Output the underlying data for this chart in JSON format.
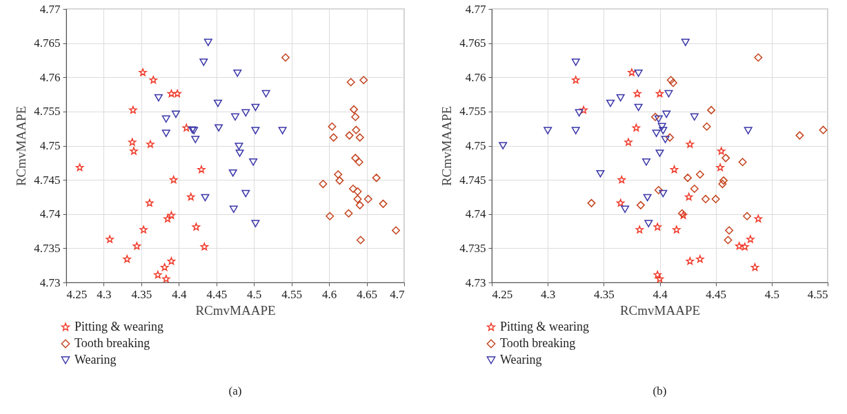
{
  "chart_data": [
    {
      "type": "scatter",
      "xlabel": "RCmvMAAPE",
      "ylabel": "RCmvMAAPE",
      "annotations": [
        "(a)"
      ],
      "xlim": [
        4.25,
        4.7
      ],
      "xticks": [
        4.25,
        4.3,
        4.35,
        4.4,
        4.45,
        4.5,
        4.55,
        4.6,
        4.65,
        4.7
      ],
      "ylim": [
        4.73,
        4.77
      ],
      "yticks": [
        4.73,
        4.735,
        4.74,
        4.745,
        4.75,
        4.755,
        4.76,
        4.765,
        4.77
      ],
      "grid": true,
      "legend": "bottom left",
      "series": [
        {
          "name": "Pitting & wearing",
          "color": "#f03a2a",
          "marker": "star",
          "x": [
            4.268,
            4.308,
            4.331,
            4.338,
            4.339,
            4.34,
            4.344,
            4.352,
            4.353,
            4.361,
            4.362,
            4.366,
            4.372,
            4.381,
            4.383,
            4.385,
            4.39,
            4.39,
            4.39,
            4.393,
            4.398,
            4.41,
            4.416,
            4.423,
            4.43,
            4.434
          ],
          "values": [
            4.7468,
            4.7363,
            4.7334,
            4.7505,
            4.7552,
            4.7492,
            4.7353,
            4.7607,
            4.7377,
            4.7416,
            4.7502,
            4.7596,
            4.7311,
            4.7322,
            4.7305,
            4.7393,
            4.7576,
            4.7398,
            4.7331,
            4.745,
            4.7576,
            4.7526,
            4.7425,
            4.7381,
            4.7465,
            4.7352
          ]
        },
        {
          "name": "Tooth breaking",
          "color": "#c4421c",
          "marker": "diamond",
          "x": [
            4.542,
            4.592,
            4.601,
            4.604,
            4.606,
            4.612,
            4.614,
            4.626,
            4.627,
            4.629,
            4.632,
            4.633,
            4.635,
            4.635,
            4.636,
            4.638,
            4.638,
            4.64,
            4.641,
            4.641,
            4.642,
            4.646,
            4.652,
            4.663,
            4.672,
            4.689
          ],
          "values": [
            4.7629,
            4.7444,
            4.7397,
            4.7528,
            4.7512,
            4.7458,
            4.7449,
            4.7401,
            4.7515,
            4.7593,
            4.7437,
            4.7553,
            4.7482,
            4.7542,
            4.7523,
            4.7433,
            4.7422,
            4.7476,
            4.7413,
            4.7512,
            4.7362,
            4.7596,
            4.7422,
            4.7453,
            4.7415,
            4.7376
          ]
        },
        {
          "name": "Wearing",
          "color": "#3a36a8",
          "marker": "triangle-down",
          "x": [
            4.373,
            4.383,
            4.383,
            4.396,
            4.418,
            4.42,
            4.422,
            4.433,
            4.435,
            4.439,
            4.452,
            4.453,
            4.472,
            4.473,
            4.475,
            4.478,
            4.48,
            4.481,
            4.489,
            4.489,
            4.499,
            4.502,
            4.502,
            4.502,
            4.516,
            4.538
          ],
          "values": [
            4.757,
            4.7539,
            4.7518,
            4.7546,
            4.7523,
            4.7522,
            4.7509,
            4.7622,
            4.7424,
            4.7651,
            4.7562,
            4.7526,
            4.746,
            4.7407,
            4.7542,
            4.7606,
            4.7499,
            4.7489,
            4.7548,
            4.743,
            4.7476,
            4.7522,
            4.7556,
            4.7386,
            4.7576,
            4.7522
          ]
        }
      ]
    },
    {
      "type": "scatter",
      "xlabel": "RCmvMAAPE",
      "ylabel": "RCmvMAAPE",
      "annotations": [
        "(b)"
      ],
      "xlim": [
        4.25,
        4.55
      ],
      "xticks": [
        4.25,
        4.3,
        4.35,
        4.4,
        4.45,
        4.5,
        4.55
      ],
      "ylim": [
        4.73,
        4.77
      ],
      "yticks": [
        4.73,
        4.735,
        4.74,
        4.745,
        4.75,
        4.755,
        4.76,
        4.765,
        4.77
      ],
      "grid": true,
      "legend": "bottom left",
      "series": [
        {
          "name": "Pitting & wearing",
          "color": "#f03a2a",
          "marker": "star",
          "x": [
            4.325,
            4.332,
            4.365,
            4.366,
            4.372,
            4.375,
            4.379,
            4.38,
            4.382,
            4.398,
            4.398,
            4.4,
            4.4,
            4.413,
            4.415,
            4.421,
            4.426,
            4.427,
            4.427,
            4.436,
            4.454,
            4.455,
            4.471,
            4.476,
            4.481,
            4.485,
            4.488
          ],
          "values": [
            4.7596,
            4.7552,
            4.7416,
            4.745,
            4.7505,
            4.7607,
            4.7526,
            4.7576,
            4.7377,
            4.7381,
            4.7311,
            4.7305,
            4.7576,
            4.7465,
            4.7377,
            4.7398,
            4.7425,
            4.7502,
            4.7331,
            4.7334,
            4.7468,
            4.7492,
            4.7353,
            4.7352,
            4.7363,
            4.7322,
            4.7393
          ]
        },
        {
          "name": "Tooth breaking",
          "color": "#c4421c",
          "marker": "diamond",
          "x": [
            4.339,
            4.383,
            4.396,
            4.399,
            4.409,
            4.41,
            4.412,
            4.42,
            4.425,
            4.431,
            4.436,
            4.441,
            4.442,
            4.446,
            4.45,
            4.456,
            4.457,
            4.459,
            4.461,
            4.462,
            4.474,
            4.478,
            4.488,
            4.525,
            4.546
          ],
          "values": [
            4.7416,
            4.7413,
            4.7542,
            4.7435,
            4.7512,
            4.7596,
            4.7592,
            4.7401,
            4.7453,
            4.7437,
            4.7458,
            4.7422,
            4.7528,
            4.7552,
            4.7422,
            4.7444,
            4.7449,
            4.7482,
            4.7362,
            4.7376,
            4.7476,
            4.7397,
            4.7629,
            4.7515,
            4.7523
          ]
        },
        {
          "name": "Wearing",
          "color": "#3a36a8",
          "marker": "triangle-down",
          "x": [
            4.26,
            4.3,
            4.325,
            4.325,
            4.328,
            4.347,
            4.356,
            4.365,
            4.369,
            4.381,
            4.381,
            4.388,
            4.389,
            4.39,
            4.397,
            4.399,
            4.4,
            4.402,
            4.403,
            4.403,
            4.405,
            4.406,
            4.408,
            4.423,
            4.431,
            4.479
          ],
          "values": [
            4.75,
            4.7522,
            4.7622,
            4.7522,
            4.7548,
            4.7459,
            4.7562,
            4.757,
            4.7407,
            4.7606,
            4.7556,
            4.7476,
            4.7424,
            4.7386,
            4.7518,
            4.7539,
            4.7489,
            4.7528,
            4.743,
            4.7522,
            4.7509,
            4.7546,
            4.7576,
            4.7651,
            4.7542,
            4.7522
          ]
        }
      ]
    }
  ]
}
